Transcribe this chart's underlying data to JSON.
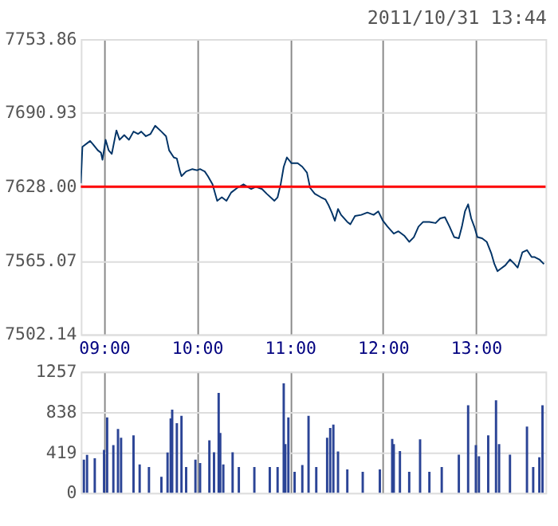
{
  "chart_data": [
    {
      "type": "line",
      "title": "2011/10/31 13:44",
      "xlim": [
        8.75,
        13.75
      ],
      "xticks": [
        {
          "value": 9,
          "label": "09:00"
        },
        {
          "value": 10,
          "label": "10:00"
        },
        {
          "value": 11,
          "label": "11:00"
        },
        {
          "value": 12,
          "label": "12:00"
        },
        {
          "value": 13,
          "label": "13:00"
        }
      ],
      "ylim": [
        7502.14,
        7753.86
      ],
      "yticks": [
        7502.14,
        7565.07,
        {
          "value": 7628,
          "label": "7628.00"
        },
        7690.93,
        7753.86
      ],
      "grid": true,
      "ref_lines": [
        {
          "axis": "y",
          "value": 7628,
          "color": "#ff0000"
        }
      ],
      "series": [
        {
          "type": "line",
          "color": "#003366",
          "x": [
            8.75,
            8.767,
            8.833,
            8.85,
            8.883,
            8.933,
            8.967,
            8.983,
            9.017,
            9.05,
            9.083,
            9.133,
            9.167,
            9.217,
            9.267,
            9.317,
            9.367,
            9.4,
            9.45,
            9.5,
            9.55,
            9.617,
            9.667,
            9.7,
            9.75,
            9.783,
            9.817,
            9.833,
            9.883,
            9.95,
            10.0,
            10.033,
            10.083,
            10.117,
            10.167,
            10.217,
            10.267,
            10.317,
            10.367,
            10.433,
            10.5,
            10.583,
            10.633,
            10.7,
            10.75,
            10.833,
            10.867,
            10.9,
            10.933,
            10.967,
            11.017,
            11.083,
            11.133,
            11.183,
            11.217,
            11.267,
            11.333,
            11.383,
            11.417,
            11.45,
            11.483,
            11.517,
            11.55,
            11.617,
            11.65,
            11.7,
            11.767,
            11.833,
            11.9,
            11.95,
            12.0,
            12.05,
            12.117,
            12.167,
            12.233,
            12.283,
            12.333,
            12.383,
            12.433,
            12.5,
            12.567,
            12.617,
            12.667,
            12.717,
            12.767,
            12.817,
            12.85,
            12.883,
            12.917,
            12.95,
            12.983,
            13.017,
            13.067,
            13.117,
            13.167,
            13.2,
            13.233,
            13.267,
            13.317,
            13.367,
            13.417,
            13.45,
            13.5,
            13.55,
            13.6,
            13.633,
            13.683,
            13.733
          ],
          "values": [
            7631,
            7662,
            7666,
            7667,
            7664,
            7659,
            7657,
            7651,
            7668,
            7659,
            7656,
            7676,
            7668,
            7672,
            7668,
            7675,
            7673,
            7675,
            7671,
            7673,
            7680,
            7675,
            7671,
            7659,
            7653,
            7652,
            7641,
            7637,
            7641,
            7643,
            7642,
            7643,
            7641,
            7637,
            7630,
            7616,
            7619,
            7616,
            7623,
            7627,
            7630,
            7626,
            7628,
            7626,
            7622,
            7616,
            7619,
            7630,
            7645,
            7653,
            7648,
            7648,
            7645,
            7640,
            7627,
            7622,
            7619,
            7617,
            7612,
            7606,
            7599,
            7609,
            7604,
            7598,
            7596,
            7603,
            7604,
            7606,
            7604,
            7607,
            7599,
            7594,
            7588,
            7590,
            7586,
            7581,
            7585,
            7594,
            7598,
            7598,
            7597,
            7601,
            7602,
            7594,
            7585,
            7584,
            7594,
            7607,
            7613,
            7601,
            7594,
            7585,
            7584,
            7581,
            7571,
            7562,
            7556,
            7558,
            7561,
            7566,
            7562,
            7559,
            7572,
            7574,
            7568,
            7568,
            7566,
            7562
          ]
        }
      ]
    },
    {
      "type": "bar",
      "xlim": [
        8.75,
        13.75
      ],
      "xticks": [
        {
          "value": 9,
          "label": null
        },
        {
          "value": 10,
          "label": null
        },
        {
          "value": 11,
          "label": null
        },
        {
          "value": 12,
          "label": null
        },
        {
          "value": 13,
          "label": null
        }
      ],
      "ylim": [
        0,
        1257
      ],
      "yticks": [
        0,
        419,
        838,
        1257
      ],
      "grid": true,
      "tick_labels": "y",
      "color": "#2b4496",
      "x": [
        8.783,
        8.817,
        8.9,
        9.0,
        9.033,
        9.1,
        9.15,
        9.183,
        9.317,
        9.383,
        9.483,
        9.617,
        9.683,
        9.717,
        9.733,
        9.783,
        9.833,
        9.883,
        9.983,
        10.033,
        10.133,
        10.183,
        10.233,
        10.25,
        10.283,
        10.383,
        10.45,
        10.617,
        10.783,
        10.867,
        10.933,
        10.95,
        10.983,
        11.05,
        11.133,
        11.2,
        11.283,
        11.4,
        11.433,
        11.467,
        11.517,
        11.617,
        11.783,
        11.967,
        12.1,
        12.117,
        12.183,
        12.283,
        12.4,
        12.5,
        12.633,
        12.817,
        12.917,
        13.0,
        13.033,
        13.133,
        13.217,
        13.25,
        13.367,
        13.55,
        13.617,
        13.683,
        13.717
      ],
      "values": [
        344,
        394,
        359,
        445,
        783,
        495,
        662,
        571,
        597,
        294,
        268,
        167,
        419,
        772,
        863,
        722,
        798,
        268,
        344,
        309,
        545,
        420,
        1036,
        621,
        294,
        420,
        268,
        268,
        268,
        268,
        1136,
        505,
        783,
        218,
        289,
        798,
        268,
        571,
        672,
        707,
        429,
        243,
        218,
        243,
        560,
        505,
        434,
        218,
        556,
        218,
        268,
        395,
        908,
        495,
        379,
        597,
        960,
        505,
        395,
        687,
        268,
        369,
        908
      ]
    }
  ]
}
